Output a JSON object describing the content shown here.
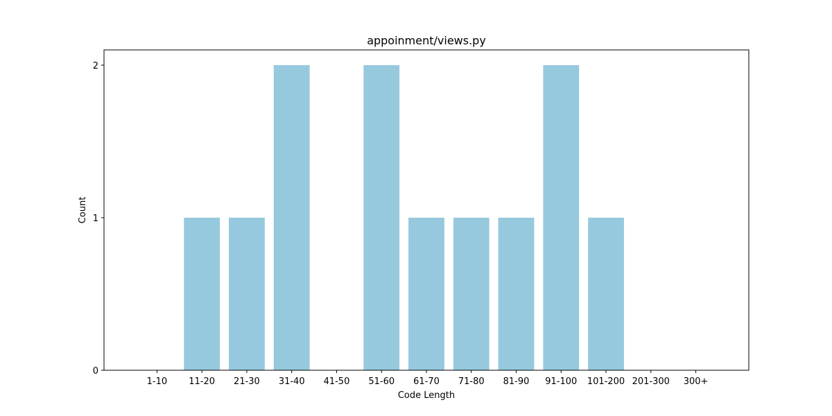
{
  "chart_data": {
    "type": "bar",
    "title": "appoinment/views.py",
    "xlabel": "Code Length",
    "ylabel": "Count",
    "categories": [
      "1-10",
      "11-20",
      "21-30",
      "31-40",
      "41-50",
      "51-60",
      "61-70",
      "71-80",
      "81-90",
      "91-100",
      "101-200",
      "201-300",
      "300+"
    ],
    "values": [
      0,
      1,
      1,
      2,
      0,
      2,
      1,
      1,
      1,
      2,
      1,
      0,
      0
    ],
    "ylim": [
      0,
      2.1
    ],
    "yticks": [
      0,
      1,
      2
    ],
    "grid": false,
    "legend": "none",
    "bar_color": "#96c9de"
  }
}
